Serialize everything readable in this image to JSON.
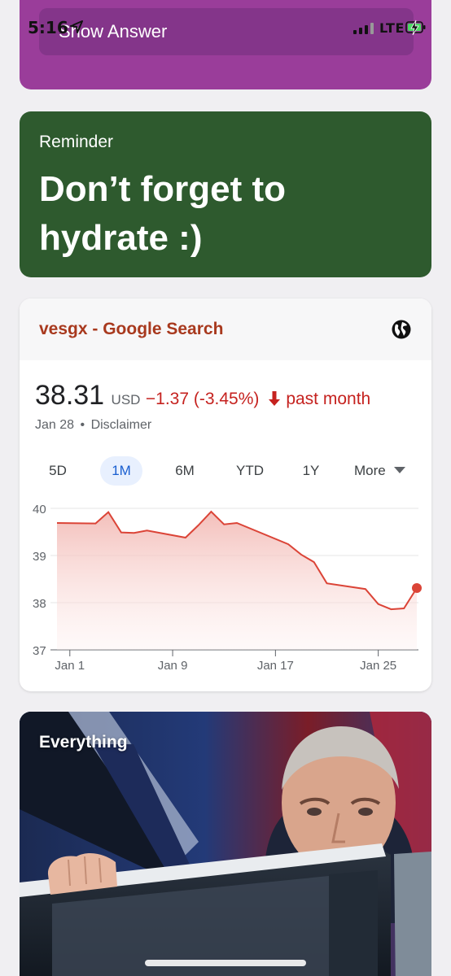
{
  "status_bar": {
    "time": "5:16",
    "network": "LTE"
  },
  "flashcard": {
    "show_answer_label": "Show Answer"
  },
  "reminder": {
    "label": "Reminder",
    "message": "Don’t forget to hydrate :)"
  },
  "google_widget": {
    "title": "vesgx - Google Search",
    "price": "38.31",
    "currency": "USD",
    "change": "−1.37 (-3.45%)",
    "period": "past month",
    "date": "Jan 28",
    "separator": "•",
    "disclaimer": "Disclaimer",
    "ranges": [
      "5D",
      "1M",
      "6M",
      "YTD",
      "1Y",
      "More"
    ],
    "active_range": "1M",
    "accent_color": "#c5221f",
    "link_color": "#a8391e"
  },
  "chart_data": {
    "type": "area",
    "x_tick_labels": [
      "Jan 1",
      "Jan 9",
      "Jan 17",
      "Jan 25"
    ],
    "y_tick_labels": [
      "40",
      "39",
      "38",
      "37"
    ],
    "ylim": [
      37,
      40
    ],
    "grid": true,
    "series": [
      {
        "x": [
          "Dec 31",
          "Jan 3",
          "Jan 4",
          "Jan 5",
          "Jan 6",
          "Jan 7",
          "Jan 10",
          "Jan 11",
          "Jan 12",
          "Jan 13",
          "Jan 14",
          "Jan 18",
          "Jan 19",
          "Jan 20",
          "Jan 21",
          "Jan 24",
          "Jan 25",
          "Jan 26",
          "Jan 27",
          "Jan 28"
        ],
        "values": [
          39.69,
          39.68,
          39.92,
          39.49,
          39.48,
          39.53,
          39.38,
          39.64,
          39.93,
          39.66,
          39.69,
          39.24,
          39.02,
          38.86,
          38.41,
          38.29,
          37.97,
          37.86,
          37.88,
          38.31
        ]
      }
    ],
    "line_color": "#db4437"
  },
  "everything_card": {
    "label": "Everything"
  }
}
